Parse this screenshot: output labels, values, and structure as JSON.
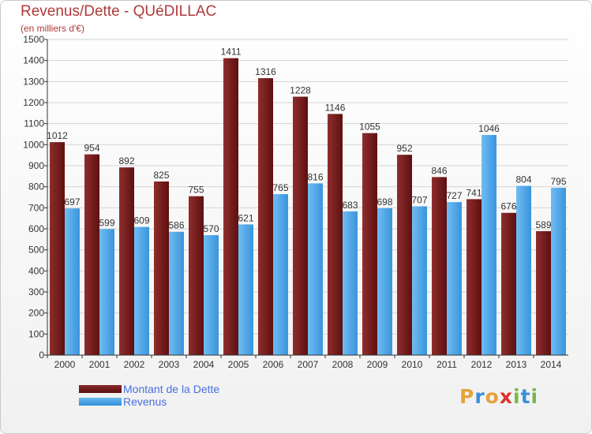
{
  "chart_data": {
    "type": "bar",
    "title": "Revenus/Dette - QUéDILLAC",
    "ylabel": "(en milliers d'€)",
    "xlabel": "",
    "ylim": [
      0,
      1500
    ],
    "yticks": [
      0,
      100,
      200,
      300,
      400,
      500,
      600,
      700,
      800,
      900,
      1000,
      1100,
      1200,
      1300,
      1400,
      1500
    ],
    "categories": [
      "2000",
      "2001",
      "2002",
      "2003",
      "2004",
      "2005",
      "2006",
      "2007",
      "2008",
      "2009",
      "2010",
      "2011",
      "2012",
      "2013",
      "2014"
    ],
    "series": [
      {
        "name": "Montant de la Dette",
        "color": "#7a1e1e",
        "values": [
          1012,
          954,
          892,
          825,
          755,
          1411,
          1316,
          1228,
          1146,
          1055,
          952,
          846,
          741,
          676,
          589
        ]
      },
      {
        "name": "Revenus",
        "color": "#4aa3e8",
        "values": [
          697,
          599,
          609,
          586,
          570,
          621,
          765,
          816,
          683,
          698,
          707,
          727,
          1046,
          804,
          795
        ]
      }
    ],
    "grid": true,
    "legend": "bottom-left"
  },
  "logo": {
    "letters": [
      "P",
      "r",
      "o",
      "x",
      "i",
      "t",
      "i"
    ],
    "colors": [
      "#e6a23c",
      "#3a8fd8",
      "#e6a23c",
      "#d9342b",
      "#7ab648",
      "#3a8fd8",
      "#7ab648"
    ]
  }
}
